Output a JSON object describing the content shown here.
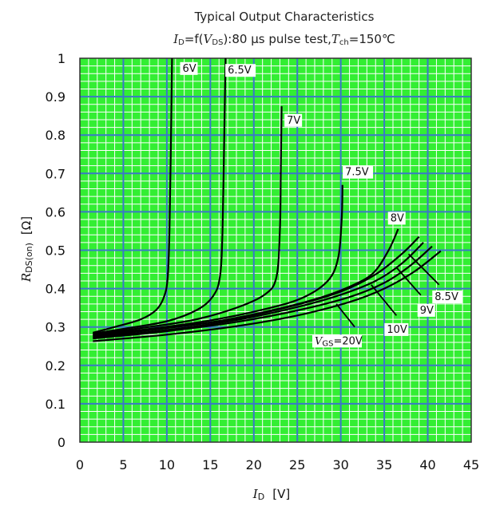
{
  "chart_data": {
    "type": "line",
    "title": "Typical Output Characteristics",
    "subtitle": {
      "var": "I",
      "var_sub": "D",
      "mid": "=f(",
      "var2": "V",
      "var2_sub": "DS",
      "rest": "):80 μs pulse test,",
      "var3": "T",
      "var3_sub": "ch",
      "end": "=150℃"
    },
    "xlabel": {
      "var": "I",
      "sub": "D",
      "unit": "[V]"
    },
    "ylabel": {
      "var": "R",
      "sub": "DS(on)",
      "unit": "[Ω]"
    },
    "xlim": [
      0,
      45
    ],
    "ylim": [
      0,
      1
    ],
    "x_ticks": [
      "0",
      "5",
      "10",
      "15",
      "20",
      "25",
      "30",
      "35",
      "40",
      "45"
    ],
    "y_ticks": [
      "0",
      "0.1",
      "0.2",
      "0.3",
      "0.4",
      "0.5",
      "0.6",
      "0.7",
      "0.8",
      "0.9",
      "1"
    ],
    "grid": true,
    "colors": {
      "plot_background": "#33ee33",
      "major_grid": "#3a78c8",
      "minor_grid": "#ffffff",
      "curve": "#000000"
    },
    "series": [
      {
        "name": "6V",
        "label": "6V",
        "label_at": [
          11.8,
          0.965
        ],
        "points": [
          [
            1.5,
            0.285
          ],
          [
            4,
            0.3
          ],
          [
            7,
            0.32
          ],
          [
            8.8,
            0.345
          ],
          [
            9.7,
            0.38
          ],
          [
            10.1,
            0.43
          ],
          [
            10.3,
            0.55
          ],
          [
            10.45,
            0.75
          ],
          [
            10.6,
            1.0
          ]
        ]
      },
      {
        "name": "6.5V",
        "label": "6.5V",
        "label_at": [
          17,
          0.96
        ],
        "points": [
          [
            1.5,
            0.283
          ],
          [
            5,
            0.295
          ],
          [
            10,
            0.315
          ],
          [
            13.5,
            0.345
          ],
          [
            15.3,
            0.38
          ],
          [
            16.1,
            0.43
          ],
          [
            16.4,
            0.55
          ],
          [
            16.6,
            0.8
          ],
          [
            16.75,
            1.0
          ]
        ]
      },
      {
        "name": "7V",
        "label": "7V",
        "label_at": [
          23.8,
          0.83
        ],
        "points": [
          [
            1.5,
            0.281
          ],
          [
            7,
            0.297
          ],
          [
            13,
            0.318
          ],
          [
            18,
            0.35
          ],
          [
            21.3,
            0.385
          ],
          [
            22.6,
            0.43
          ],
          [
            23,
            0.55
          ],
          [
            23.1,
            0.7
          ],
          [
            23.2,
            0.875
          ]
        ]
      },
      {
        "name": "7.5V",
        "label": "7.5V",
        "label_at": [
          30.5,
          0.695
        ],
        "points": [
          [
            1.5,
            0.279
          ],
          [
            8,
            0.295
          ],
          [
            15,
            0.317
          ],
          [
            21,
            0.345
          ],
          [
            25.5,
            0.375
          ],
          [
            28.5,
            0.42
          ],
          [
            29.7,
            0.48
          ],
          [
            30.1,
            0.58
          ],
          [
            30.2,
            0.67
          ]
        ]
      },
      {
        "name": "8V",
        "label": "8V",
        "label_at": [
          35.7,
          0.575
        ],
        "points": [
          [
            1.5,
            0.277
          ],
          [
            8,
            0.293
          ],
          [
            15,
            0.312
          ],
          [
            21,
            0.338
          ],
          [
            27,
            0.372
          ],
          [
            31,
            0.405
          ],
          [
            33.7,
            0.44
          ],
          [
            35.5,
            0.5
          ],
          [
            36.6,
            0.555
          ]
        ]
      },
      {
        "name": "8.5V",
        "label": "8.5V",
        "points": [
          [
            1.5,
            0.275
          ],
          [
            10,
            0.297
          ],
          [
            18,
            0.322
          ],
          [
            25,
            0.358
          ],
          [
            30,
            0.392
          ],
          [
            34,
            0.437
          ],
          [
            37,
            0.49
          ],
          [
            39,
            0.535
          ]
        ]
      },
      {
        "name": "9V",
        "label": "9V",
        "points": [
          [
            1.5,
            0.272
          ],
          [
            10,
            0.292
          ],
          [
            18,
            0.318
          ],
          [
            25,
            0.352
          ],
          [
            30,
            0.384
          ],
          [
            34,
            0.42
          ],
          [
            37,
            0.465
          ],
          [
            39.5,
            0.52
          ]
        ]
      },
      {
        "name": "10V",
        "label": "10V",
        "points": [
          [
            1.5,
            0.27
          ],
          [
            10,
            0.289
          ],
          [
            18,
            0.313
          ],
          [
            25,
            0.343
          ],
          [
            31,
            0.378
          ],
          [
            35,
            0.415
          ],
          [
            38,
            0.46
          ],
          [
            40.5,
            0.51
          ]
        ]
      },
      {
        "name": "VGS=20V",
        "label_var": "V",
        "label_sub": "GS",
        "label_rest": "=20V",
        "points": [
          [
            1.5,
            0.263
          ],
          [
            10,
            0.28
          ],
          [
            18,
            0.302
          ],
          [
            25,
            0.33
          ],
          [
            31,
            0.365
          ],
          [
            35,
            0.4
          ],
          [
            38.5,
            0.445
          ],
          [
            41.5,
            0.498
          ]
        ]
      }
    ],
    "leaders": [
      {
        "label": "8.5V",
        "from": [
          37.8,
          0.49
        ],
        "to": [
          41.3,
          0.41
        ],
        "text_at": [
          40.8,
          0.37
        ]
      },
      {
        "label": "9V",
        "from": [
          36.4,
          0.455
        ],
        "to": [
          39.2,
          0.383
        ],
        "text_at": [
          39.1,
          0.335
        ]
      },
      {
        "label": "10V",
        "from": [
          33.5,
          0.41
        ],
        "to": [
          36.4,
          0.33
        ],
        "text_at": [
          35.3,
          0.285
        ]
      },
      {
        "label": "VGS=20V",
        "from": [
          29.5,
          0.36
        ],
        "to": [
          31.6,
          0.3
        ],
        "text_at": [
          27,
          0.255
        ]
      }
    ]
  }
}
